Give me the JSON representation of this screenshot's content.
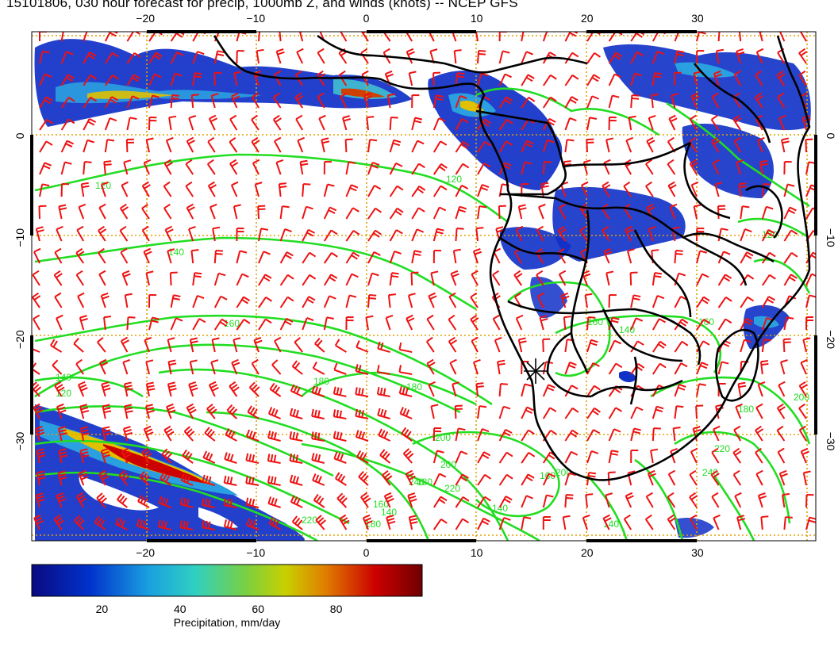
{
  "title": "15101806, 030 hour forecast for precip, 1000mb Z, and winds (knots) -- NCEP GFS",
  "map": {
    "lon_range": [
      -30,
      41
    ],
    "lat_range": [
      -40,
      10
    ],
    "lon_ticks": [
      -20,
      -10,
      0,
      10,
      20,
      30
    ],
    "lat_ticks": [
      0,
      -10,
      -20,
      -30
    ],
    "lon_tick_labels": [
      "−20",
      "−10",
      "0",
      "10",
      "20",
      "30"
    ],
    "lat_tick_labels": [
      "0",
      "−10",
      "−20",
      "−30"
    ],
    "grid": true,
    "grid_color": "#e0a000",
    "contour_color": "#22dd22",
    "barb_color": "#ee1111",
    "coast_color": "#000000",
    "contour_labels": [
      "120",
      "120",
      "140",
      "160",
      "140",
      "120",
      "180",
      "180",
      "200",
      "140",
      "160",
      "180",
      "200",
      "220",
      "240",
      "200",
      "160",
      "140",
      "220",
      "180",
      "160",
      "140",
      "120",
      "240",
      "220",
      "200",
      "180",
      "160",
      "140"
    ],
    "marker": {
      "lon": 15,
      "lat": -23
    }
  },
  "colorbar": {
    "title": "Precipitation, mm/day",
    "tick_labels": [
      "20",
      "40",
      "60",
      "80"
    ],
    "range": [
      0,
      100
    ],
    "colors": [
      "#0a0a80",
      "#0033cc",
      "#1aa0e0",
      "#30d0c0",
      "#c8d000",
      "#e08000",
      "#cc0000",
      "#700000"
    ]
  }
}
